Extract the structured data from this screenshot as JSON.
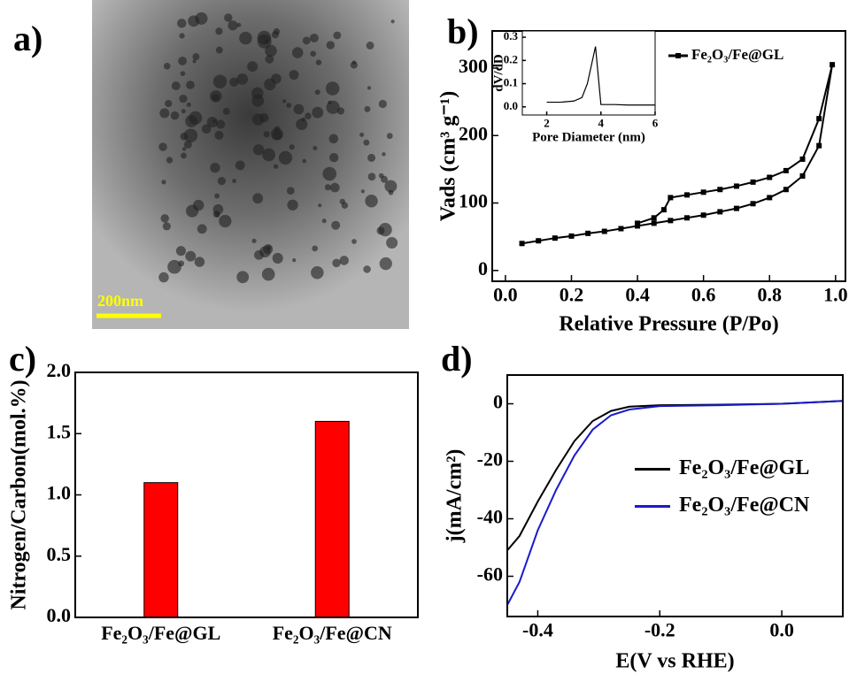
{
  "chart_data": [
    {
      "type": "image",
      "label": "a)",
      "scale_bar": "200nm"
    },
    {
      "type": "line",
      "label": "b)",
      "xlabel": "Relative Pressure (P/Po)",
      "ylabel": "Vads (cm³ g⁻¹)",
      "x": [
        0.05,
        0.1,
        0.15,
        0.2,
        0.25,
        0.3,
        0.35,
        0.4,
        0.45,
        0.5,
        0.55,
        0.6,
        0.65,
        0.7,
        0.75,
        0.8,
        0.85,
        0.9,
        0.95,
        0.99,
        0.95,
        0.9,
        0.85,
        0.8,
        0.75,
        0.7,
        0.65,
        0.6,
        0.55,
        0.5,
        0.48,
        0.45,
        0.4
      ],
      "series": [
        {
          "name": "Fe₂O₃/Fe@GL",
          "color": "#000000",
          "marker": "square",
          "values": [
            40,
            44,
            48,
            51,
            55,
            58,
            62,
            66,
            70,
            74,
            78,
            82,
            87,
            92,
            99,
            108,
            120,
            140,
            185,
            305,
            225,
            165,
            148,
            138,
            131,
            125,
            120,
            116,
            112,
            108,
            90,
            78,
            70
          ]
        }
      ],
      "xlim": [
        -0.04,
        1.03
      ],
      "xticks": [
        {
          "value": 0,
          "label": "0.0"
        },
        0.2,
        0.4,
        0.6,
        0.8,
        {
          "value": 1,
          "label": "1.0"
        }
      ],
      "ylim": [
        -16,
        355
      ],
      "yticks": [
        0,
        100,
        200,
        300
      ],
      "legend": "upper right"
    },
    {
      "type": "line",
      "inset": true,
      "xlabel": "Pore Diameter (nm)",
      "ylabel": "dV/dD",
      "x": [
        2,
        2.5,
        3,
        3.3,
        3.5,
        3.8,
        4,
        4.5,
        5,
        6
      ],
      "series": [
        {
          "name": null,
          "color": "#000000",
          "values": [
            0.02,
            0.02,
            0.025,
            0.04,
            0.1,
            0.26,
            0.01,
            0.01,
            0.008,
            0.008
          ]
        }
      ],
      "xlim": [
        1.1,
        6
      ],
      "xticks": [
        2,
        4,
        6
      ],
      "ylim": [
        -0.035,
        0.327
      ],
      "yticks": [
        {
          "value": 0,
          "label": "0.0"
        },
        0.1,
        0.2,
        0.3
      ]
    },
    {
      "type": "bar",
      "label": "c)",
      "ylabel": "Nitrogen/Carbon(mol.%)",
      "categories": [
        "Fe₂O₃/Fe@GL",
        "Fe₂O₃/Fe@CN"
      ],
      "values": [
        1.1,
        1.6
      ],
      "color": "#ff0000",
      "ylim": [
        0,
        2.0
      ],
      "yticks": [
        {
          "value": 0,
          "label": "0.0"
        },
        0.5,
        {
          "value": 1,
          "label": "1.0"
        },
        1.5,
        {
          "value": 2,
          "label": "2.0"
        }
      ]
    },
    {
      "type": "line",
      "label": "d)",
      "xlabel": "E(V vs RHE)",
      "ylabel": "j(mA/cm²)",
      "x": [
        -0.45,
        -0.43,
        -0.4,
        -0.37,
        -0.34,
        -0.31,
        -0.28,
        -0.25,
        -0.2,
        -0.1,
        0,
        0.1
      ],
      "series": [
        {
          "name": "Fe₂O₃/Fe@GL",
          "color": "#000000",
          "values": [
            -51,
            -46,
            -34,
            -23,
            -13,
            -6,
            -2.5,
            -1,
            -0.5,
            -0.3,
            0,
            1
          ]
        },
        {
          "name": "Fe₂O₃/Fe@CN",
          "color": "#1a1acc",
          "values": [
            -70,
            -62,
            -44,
            -30,
            -18,
            -9,
            -4,
            -2,
            -0.8,
            -0.5,
            0,
            1
          ]
        }
      ],
      "xlim": [
        -0.45,
        0.1
      ],
      "xticks": [
        -0.4,
        -0.2,
        {
          "value": 0,
          "label": "0.0"
        }
      ],
      "ylim": [
        -74,
        10
      ],
      "yticks": [
        0,
        -20,
        -40,
        -60
      ],
      "legend": "center right"
    }
  ]
}
